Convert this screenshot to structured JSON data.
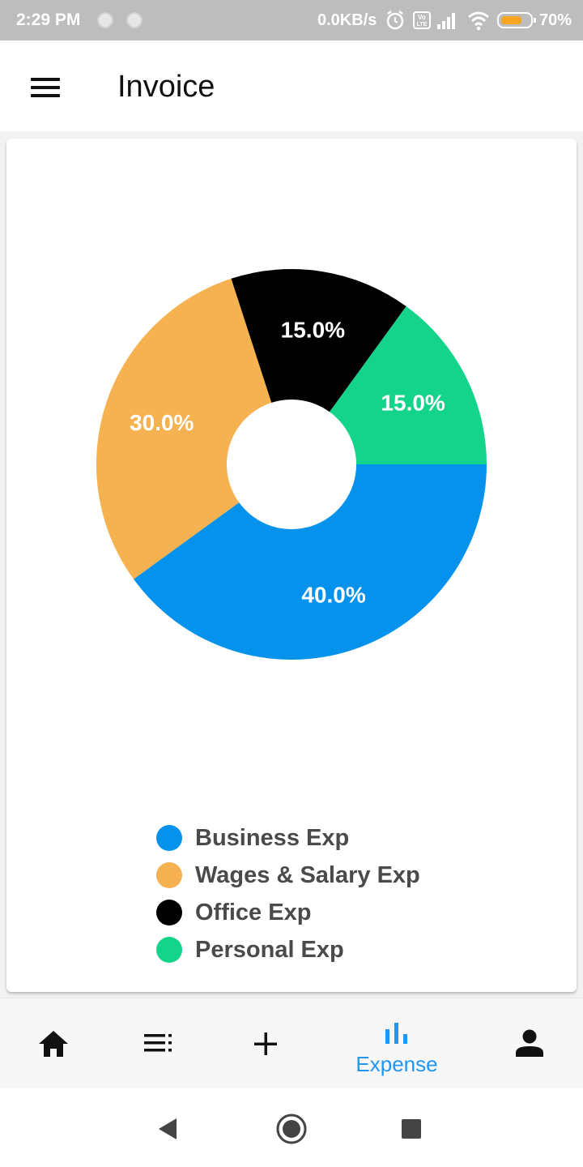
{
  "status_bar": {
    "time": "2:29 PM",
    "net_speed": "0.0KB/s",
    "battery_percent": "70%",
    "battery_level": 0.7,
    "icons": [
      "notification-dot-icon",
      "notification-dot-icon",
      "alarm-icon",
      "volte-icon",
      "signal-icon",
      "wifi-icon",
      "battery-icon"
    ]
  },
  "app_bar": {
    "title": "Invoice",
    "menu_icon": "hamburger-menu-icon"
  },
  "chart_data": {
    "type": "pie",
    "donut": true,
    "title": "",
    "series": [
      {
        "name": "Business Exp",
        "value": 40.0,
        "label": "40.0%",
        "color": "#0592ec"
      },
      {
        "name": "Wages & Salary Exp",
        "value": 30.0,
        "label": "30.0%",
        "color": "#f6b151"
      },
      {
        "name": "Office Exp",
        "value": 15.0,
        "label": "15.0%",
        "color": "#000000"
      },
      {
        "name": "Personal Exp",
        "value": 15.0,
        "label": "15.0%",
        "color": "#14d38b"
      }
    ],
    "legend_position": "bottom-center"
  },
  "bottom_nav": {
    "items": [
      {
        "icon": "home-icon",
        "label": ""
      },
      {
        "icon": "list-icon",
        "label": ""
      },
      {
        "icon": "add-icon",
        "label": ""
      },
      {
        "icon": "bar-chart-icon",
        "label": "Expense",
        "active": true
      },
      {
        "icon": "person-icon",
        "label": ""
      }
    ],
    "active_color": "#2196f3"
  },
  "system_nav": {
    "icons": [
      "back-icon",
      "home-circle-icon",
      "recents-icon"
    ]
  }
}
